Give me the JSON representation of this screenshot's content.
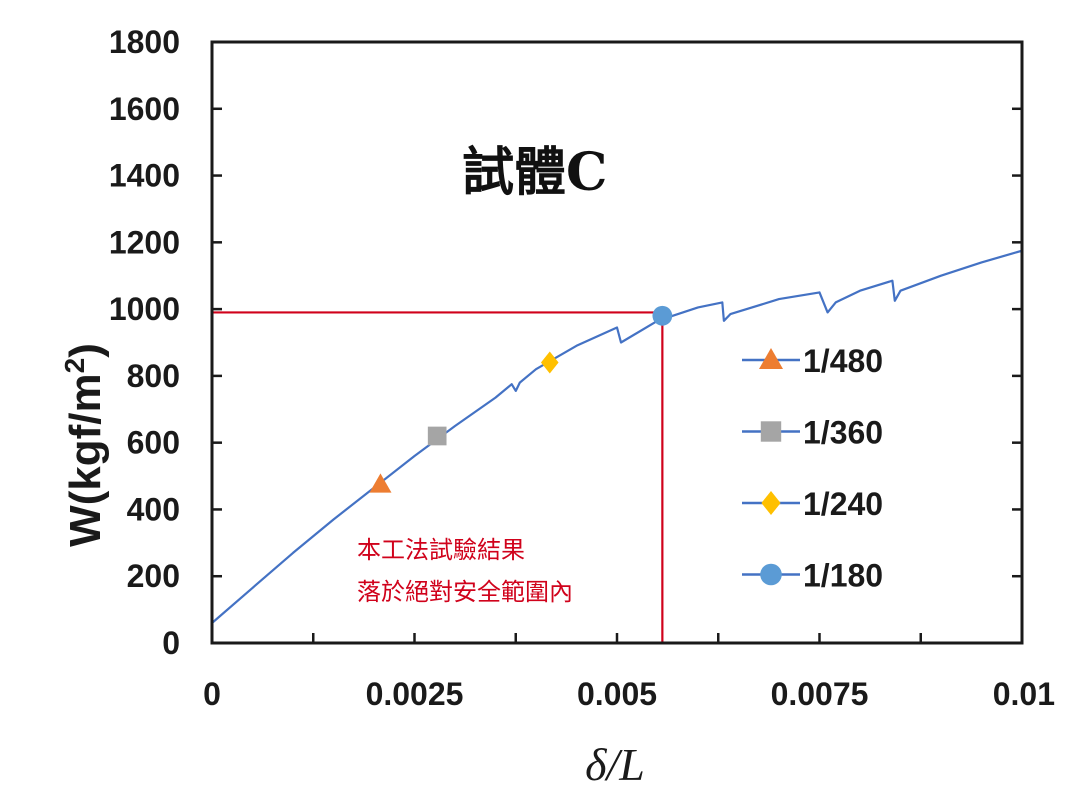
{
  "chart_data": {
    "type": "line",
    "title": "試體C",
    "xlabel": "δ/L",
    "ylabel": "W(kgf/m",
    "ylabel_sup": "2",
    "ylabel_close": ")",
    "xlim": [
      0,
      0.01
    ],
    "ylim": [
      0,
      1800
    ],
    "x_ticks": [
      0,
      0.0025,
      0.005,
      0.0075,
      0.01
    ],
    "x_tick_labels": [
      "0",
      "0.0025",
      "0.005",
      "0.0075",
      "0.01"
    ],
    "x_minor_ticks": [
      0.00125,
      0.00375,
      0.00625,
      0.00875
    ],
    "y_ticks": [
      0,
      200,
      400,
      600,
      800,
      1000,
      1200,
      1400,
      1600,
      1800
    ],
    "y_tick_labels": [
      "0",
      "200",
      "400",
      "600",
      "800",
      "1000",
      "1200",
      "1400",
      "1600",
      "1800"
    ],
    "grid": false,
    "line_color": "#4472c4",
    "curve": {
      "x": [
        0,
        0.0005,
        0.001,
        0.0015,
        0.002,
        0.0025,
        0.003,
        0.0035,
        0.0037,
        0.00375,
        0.0038,
        0.004,
        0.0045,
        0.005,
        0.00505,
        0.0055,
        0.006,
        0.0063,
        0.00632,
        0.0064,
        0.007,
        0.0075,
        0.0076,
        0.0077,
        0.008,
        0.0084,
        0.00843,
        0.0085,
        0.009,
        0.0095,
        0.01,
        0.01
      ],
      "y": [
        60,
        165,
        270,
        370,
        465,
        560,
        650,
        735,
        775,
        755,
        780,
        820,
        890,
        945,
        900,
        965,
        1005,
        1020,
        965,
        985,
        1030,
        1050,
        990,
        1020,
        1055,
        1085,
        1025,
        1055,
        1100,
        1140,
        1175,
        1110
      ]
    },
    "series": [
      {
        "name": "1/480",
        "marker": "triangle",
        "color": "#ed7d31",
        "x": 0.00208,
        "y": 475
      },
      {
        "name": "1/360",
        "marker": "square",
        "color": "#a5a5a5",
        "x": 0.00278,
        "y": 620
      },
      {
        "name": "1/240",
        "marker": "diamond",
        "color": "#ffc000",
        "x": 0.00417,
        "y": 840
      },
      {
        "name": "1/180",
        "marker": "circle",
        "color": "#5b9bd5",
        "x": 0.00556,
        "y": 980
      }
    ],
    "reference_lines": {
      "color": "#d0021b",
      "y": 990,
      "x": 0.00556
    },
    "annotation": {
      "lines": [
        "本工法試驗結果",
        "落於絕對安全範圍內"
      ],
      "color": "#d0021b"
    },
    "legend_position": "right"
  }
}
